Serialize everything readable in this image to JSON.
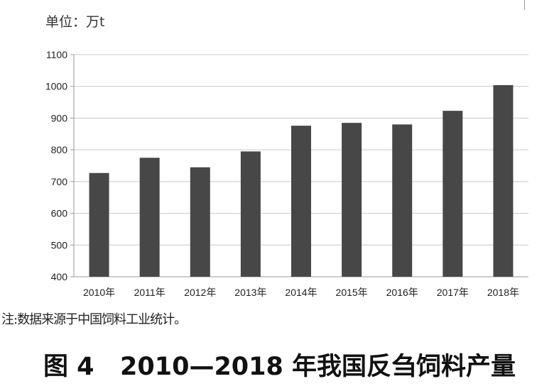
{
  "unit_label": "单位：万t",
  "note": "注:数据来源于中国饲料工业统计。",
  "caption": "图 4   2010—2018 年我国反刍饲料产量",
  "colors": {
    "bar": "#474747",
    "grid": "#c8c8c8",
    "axis": "#999999"
  },
  "chart_data": {
    "type": "bar",
    "title": "",
    "xlabel": "",
    "ylabel": "",
    "categories": [
      "2010年",
      "2011年",
      "2012年",
      "2013年",
      "2014年",
      "2015年",
      "2016年",
      "2017年",
      "2018年"
    ],
    "values": [
      727,
      775,
      745,
      795,
      876,
      885,
      880,
      923,
      1004
    ],
    "ylim": [
      400,
      1100
    ],
    "yticks": [
      400,
      500,
      600,
      700,
      800,
      900,
      1000,
      1100
    ],
    "grid": true,
    "legend": "none"
  }
}
